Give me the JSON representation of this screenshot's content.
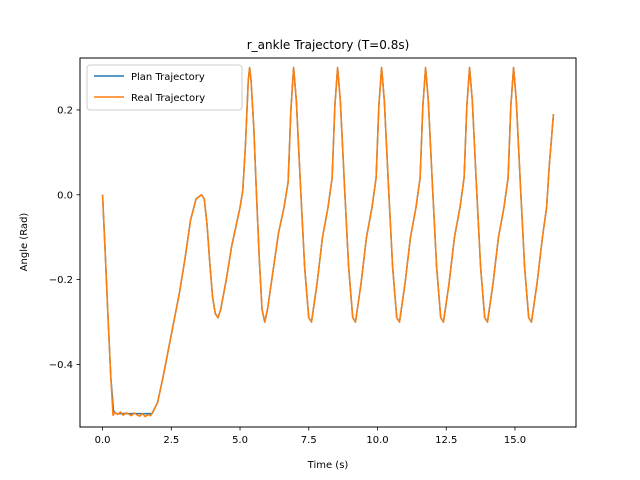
{
  "chart_data": {
    "type": "line",
    "title": "r_ankle Trajectory (T=0.8s)",
    "xlabel": "Time (s)",
    "ylabel": "Angle (Rad)",
    "xlim": [
      -0.82,
      17.22
    ],
    "ylim": [
      -0.5475,
      0.3225
    ],
    "xticks": [
      0.0,
      2.5,
      5.0,
      7.5,
      10.0,
      12.5,
      15.0
    ],
    "xtick_labels": [
      "0.0",
      "2.5",
      "5.0",
      "7.5",
      "10.0",
      "12.5",
      "15.0"
    ],
    "yticks": [
      -0.4,
      -0.2,
      0.0,
      0.2
    ],
    "ytick_labels": [
      "−0.4",
      "−0.2",
      "0.0",
      "0.2"
    ],
    "legend_position": "upper-left",
    "grid": false,
    "series": [
      {
        "name": "Plan Trajectory",
        "color": "#1f77b4",
        "points": [
          [
            0.0,
            0.0
          ],
          [
            0.1,
            -0.14
          ],
          [
            0.2,
            -0.29
          ],
          [
            0.3,
            -0.43
          ],
          [
            0.4,
            -0.51
          ],
          [
            0.5,
            -0.516
          ],
          [
            1.0,
            -0.516
          ],
          [
            1.5,
            -0.516
          ],
          [
            1.8,
            -0.516
          ],
          [
            2.0,
            -0.49
          ],
          [
            2.2,
            -0.43
          ],
          [
            2.5,
            -0.33
          ],
          [
            2.8,
            -0.23
          ],
          [
            3.0,
            -0.15
          ],
          [
            3.2,
            -0.06
          ],
          [
            3.4,
            -0.01
          ],
          [
            3.6,
            0.0
          ],
          [
            3.7,
            -0.01
          ],
          [
            3.8,
            -0.07
          ],
          [
            3.9,
            -0.16
          ],
          [
            4.0,
            -0.24
          ],
          [
            4.1,
            -0.28
          ],
          [
            4.2,
            -0.29
          ],
          [
            4.3,
            -0.27
          ],
          [
            4.5,
            -0.2
          ],
          [
            4.7,
            -0.12
          ],
          [
            4.9,
            -0.06
          ],
          [
            5.0,
            -0.03
          ],
          [
            5.1,
            0.01
          ],
          [
            5.2,
            0.12
          ],
          [
            5.3,
            0.27
          ],
          [
            5.35,
            0.3
          ],
          [
            5.4,
            0.27
          ],
          [
            5.5,
            0.16
          ],
          [
            5.6,
            0.0
          ],
          [
            5.7,
            -0.15
          ],
          [
            5.8,
            -0.27
          ],
          [
            5.9,
            -0.3
          ],
          [
            6.0,
            -0.27
          ],
          [
            6.2,
            -0.18
          ],
          [
            6.4,
            -0.09
          ],
          [
            6.6,
            -0.03
          ],
          [
            6.75,
            0.03
          ],
          [
            6.85,
            0.2
          ],
          [
            6.95,
            0.3
          ],
          [
            7.05,
            0.22
          ],
          [
            7.2,
            0.02
          ],
          [
            7.35,
            -0.17
          ],
          [
            7.5,
            -0.29
          ],
          [
            7.6,
            -0.3
          ],
          [
            7.8,
            -0.21
          ],
          [
            8.0,
            -0.1
          ],
          [
            8.2,
            -0.03
          ],
          [
            8.35,
            0.04
          ],
          [
            8.45,
            0.21
          ],
          [
            8.55,
            0.3
          ],
          [
            8.65,
            0.22
          ],
          [
            8.8,
            0.02
          ],
          [
            8.95,
            -0.17
          ],
          [
            9.1,
            -0.29
          ],
          [
            9.2,
            -0.3
          ],
          [
            9.4,
            -0.21
          ],
          [
            9.6,
            -0.1
          ],
          [
            9.8,
            -0.03
          ],
          [
            9.95,
            0.04
          ],
          [
            10.05,
            0.21
          ],
          [
            10.15,
            0.3
          ],
          [
            10.25,
            0.22
          ],
          [
            10.4,
            0.02
          ],
          [
            10.55,
            -0.17
          ],
          [
            10.7,
            -0.29
          ],
          [
            10.8,
            -0.3
          ],
          [
            11.0,
            -0.21
          ],
          [
            11.2,
            -0.1
          ],
          [
            11.4,
            -0.03
          ],
          [
            11.55,
            0.04
          ],
          [
            11.65,
            0.21
          ],
          [
            11.75,
            0.3
          ],
          [
            11.85,
            0.22
          ],
          [
            12.0,
            0.02
          ],
          [
            12.15,
            -0.17
          ],
          [
            12.3,
            -0.29
          ],
          [
            12.4,
            -0.3
          ],
          [
            12.6,
            -0.21
          ],
          [
            12.8,
            -0.1
          ],
          [
            13.0,
            -0.03
          ],
          [
            13.15,
            0.04
          ],
          [
            13.25,
            0.21
          ],
          [
            13.35,
            0.3
          ],
          [
            13.45,
            0.22
          ],
          [
            13.6,
            0.02
          ],
          [
            13.75,
            -0.17
          ],
          [
            13.9,
            -0.29
          ],
          [
            14.0,
            -0.3
          ],
          [
            14.2,
            -0.21
          ],
          [
            14.4,
            -0.1
          ],
          [
            14.6,
            -0.03
          ],
          [
            14.75,
            0.04
          ],
          [
            14.85,
            0.21
          ],
          [
            14.95,
            0.3
          ],
          [
            15.05,
            0.22
          ],
          [
            15.2,
            0.02
          ],
          [
            15.35,
            -0.17
          ],
          [
            15.5,
            -0.29
          ],
          [
            15.6,
            -0.3
          ],
          [
            15.8,
            -0.21
          ],
          [
            16.0,
            -0.1
          ],
          [
            16.15,
            -0.03
          ],
          [
            16.25,
            0.07
          ],
          [
            16.4,
            0.19
          ]
        ]
      },
      {
        "name": "Real Trajectory",
        "color": "#ff7f0e",
        "points": [
          [
            0.0,
            0.0
          ],
          [
            0.1,
            -0.14
          ],
          [
            0.2,
            -0.29
          ],
          [
            0.3,
            -0.43
          ],
          [
            0.38,
            -0.52
          ],
          [
            0.45,
            -0.513
          ],
          [
            0.55,
            -0.518
          ],
          [
            0.65,
            -0.512
          ],
          [
            0.75,
            -0.52
          ],
          [
            0.85,
            -0.514
          ],
          [
            0.95,
            -0.517
          ],
          [
            1.05,
            -0.521
          ],
          [
            1.15,
            -0.514
          ],
          [
            1.25,
            -0.519
          ],
          [
            1.35,
            -0.522
          ],
          [
            1.45,
            -0.516
          ],
          [
            1.55,
            -0.523
          ],
          [
            1.65,
            -0.518
          ],
          [
            1.75,
            -0.521
          ],
          [
            1.85,
            -0.51
          ],
          [
            2.0,
            -0.49
          ],
          [
            2.2,
            -0.43
          ],
          [
            2.5,
            -0.33
          ],
          [
            2.8,
            -0.23
          ],
          [
            3.0,
            -0.15
          ],
          [
            3.2,
            -0.06
          ],
          [
            3.4,
            -0.01
          ],
          [
            3.6,
            0.0
          ],
          [
            3.7,
            -0.01
          ],
          [
            3.8,
            -0.07
          ],
          [
            3.9,
            -0.16
          ],
          [
            4.0,
            -0.24
          ],
          [
            4.1,
            -0.28
          ],
          [
            4.2,
            -0.29
          ],
          [
            4.3,
            -0.27
          ],
          [
            4.5,
            -0.2
          ],
          [
            4.7,
            -0.12
          ],
          [
            4.9,
            -0.06
          ],
          [
            5.0,
            -0.03
          ],
          [
            5.1,
            0.01
          ],
          [
            5.2,
            0.12
          ],
          [
            5.3,
            0.27
          ],
          [
            5.35,
            0.3
          ],
          [
            5.4,
            0.27
          ],
          [
            5.5,
            0.16
          ],
          [
            5.6,
            0.0
          ],
          [
            5.7,
            -0.15
          ],
          [
            5.8,
            -0.27
          ],
          [
            5.9,
            -0.3
          ],
          [
            6.0,
            -0.27
          ],
          [
            6.2,
            -0.18
          ],
          [
            6.4,
            -0.09
          ],
          [
            6.6,
            -0.03
          ],
          [
            6.75,
            0.03
          ],
          [
            6.85,
            0.2
          ],
          [
            6.95,
            0.3
          ],
          [
            7.05,
            0.22
          ],
          [
            7.2,
            0.02
          ],
          [
            7.35,
            -0.17
          ],
          [
            7.5,
            -0.29
          ],
          [
            7.6,
            -0.3
          ],
          [
            7.8,
            -0.21
          ],
          [
            8.0,
            -0.1
          ],
          [
            8.2,
            -0.03
          ],
          [
            8.35,
            0.04
          ],
          [
            8.45,
            0.21
          ],
          [
            8.55,
            0.3
          ],
          [
            8.65,
            0.22
          ],
          [
            8.8,
            0.02
          ],
          [
            8.95,
            -0.17
          ],
          [
            9.1,
            -0.29
          ],
          [
            9.2,
            -0.3
          ],
          [
            9.4,
            -0.21
          ],
          [
            9.6,
            -0.1
          ],
          [
            9.8,
            -0.03
          ],
          [
            9.95,
            0.04
          ],
          [
            10.05,
            0.21
          ],
          [
            10.15,
            0.3
          ],
          [
            10.25,
            0.22
          ],
          [
            10.4,
            0.02
          ],
          [
            10.55,
            -0.17
          ],
          [
            10.7,
            -0.29
          ],
          [
            10.8,
            -0.3
          ],
          [
            11.0,
            -0.21
          ],
          [
            11.2,
            -0.1
          ],
          [
            11.4,
            -0.03
          ],
          [
            11.55,
            0.04
          ],
          [
            11.65,
            0.21
          ],
          [
            11.75,
            0.3
          ],
          [
            11.85,
            0.22
          ],
          [
            12.0,
            0.02
          ],
          [
            12.15,
            -0.17
          ],
          [
            12.3,
            -0.29
          ],
          [
            12.4,
            -0.3
          ],
          [
            12.6,
            -0.21
          ],
          [
            12.8,
            -0.1
          ],
          [
            13.0,
            -0.03
          ],
          [
            13.15,
            0.04
          ],
          [
            13.25,
            0.21
          ],
          [
            13.35,
            0.3
          ],
          [
            13.45,
            0.22
          ],
          [
            13.6,
            0.02
          ],
          [
            13.75,
            -0.17
          ],
          [
            13.9,
            -0.29
          ],
          [
            14.0,
            -0.3
          ],
          [
            14.2,
            -0.21
          ],
          [
            14.4,
            -0.1
          ],
          [
            14.6,
            -0.03
          ],
          [
            14.75,
            0.04
          ],
          [
            14.85,
            0.21
          ],
          [
            14.95,
            0.3
          ],
          [
            15.05,
            0.22
          ],
          [
            15.2,
            0.02
          ],
          [
            15.35,
            -0.17
          ],
          [
            15.5,
            -0.29
          ],
          [
            15.6,
            -0.3
          ],
          [
            15.8,
            -0.21
          ],
          [
            16.0,
            -0.1
          ],
          [
            16.15,
            -0.03
          ],
          [
            16.25,
            0.07
          ],
          [
            16.4,
            0.19
          ]
        ]
      }
    ]
  }
}
